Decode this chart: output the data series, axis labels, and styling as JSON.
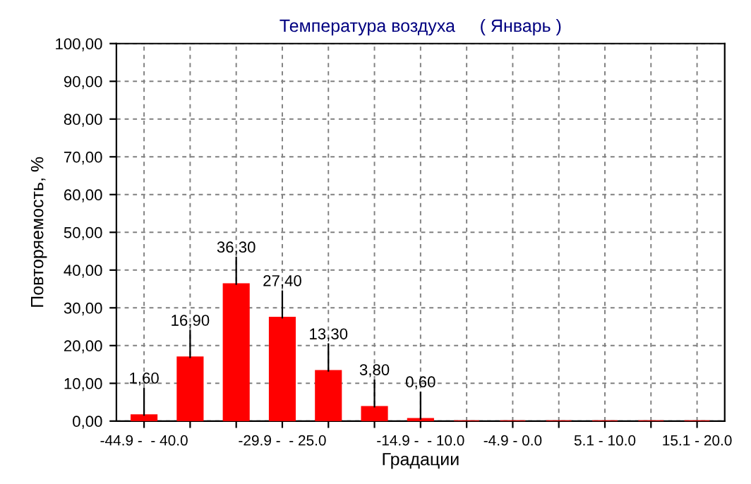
{
  "chart_data": {
    "type": "bar",
    "title": "Температура воздуха     ( Январь )",
    "xlabel": "Градации",
    "ylabel": "Повторяемость, %",
    "categories": [
      "-44.9 -  - 40.0",
      null,
      null,
      "-29.9 -  - 25.0",
      null,
      null,
      "-14.9 -  - 10.0",
      null,
      "-4.9 - 0.0",
      null,
      "5.1 - 10.0",
      null,
      "15.1 - 20.0"
    ],
    "values": [
      1.6,
      16.9,
      36.3,
      27.4,
      13.3,
      3.8,
      0.6,
      0,
      0,
      0,
      0,
      0,
      0
    ],
    "value_labels": [
      "1,60",
      "16,90",
      "36,30",
      "27,40",
      "13,30",
      "3,80",
      "0,60",
      null,
      null,
      null,
      null,
      null,
      null
    ],
    "color": "#ff0000",
    "ylim": [
      0,
      100
    ],
    "yticks": [
      {
        "value": 0,
        "label": "0,00"
      },
      {
        "value": 10,
        "label": "10,00"
      },
      {
        "value": 20,
        "label": "20,00"
      },
      {
        "value": 30,
        "label": "30,00"
      },
      {
        "value": 40,
        "label": "40,00"
      },
      {
        "value": 50,
        "label": "50,00"
      },
      {
        "value": 60,
        "label": "60,00"
      },
      {
        "value": 70,
        "label": "70,00"
      },
      {
        "value": 80,
        "label": "80,00"
      },
      {
        "value": 90,
        "label": "90,00"
      },
      {
        "value": 100,
        "label": "100,00"
      }
    ],
    "grid": true
  }
}
